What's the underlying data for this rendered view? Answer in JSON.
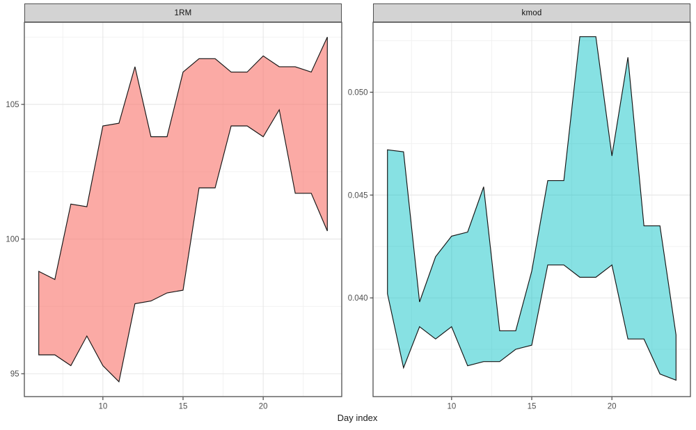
{
  "figure": {
    "xlab": "Day index",
    "background": "#FFFFFF",
    "panel_border_color": "#4F4F4F",
    "strip_fill": "#D3D3D3",
    "strip_border": "#4F4F4F",
    "grid_major_color": "#E6E6E6",
    "grid_minor_color": "#F1F1F1",
    "tick_mark_color": "#333333",
    "tick_label_color": "#4D4D4D",
    "axis_title_color": "#1A1A1A"
  },
  "chart_data": [
    {
      "type": "area",
      "title": "1RM",
      "xlabel": "Day index",
      "ylabel": "",
      "x": [
        6,
        7,
        8,
        9,
        10,
        11,
        12,
        13,
        14,
        15,
        16,
        17,
        18,
        19,
        20,
        21,
        22,
        23,
        24
      ],
      "series": [
        {
          "name": "upper",
          "values": [
            98.8,
            98.5,
            101.3,
            101.2,
            104.2,
            104.3,
            106.4,
            103.8,
            103.8,
            106.2,
            106.7,
            106.7,
            106.2,
            106.2,
            106.8,
            106.4,
            106.4,
            106.2,
            107.5
          ]
        },
        {
          "name": "lower",
          "values": [
            95.7,
            95.7,
            95.3,
            96.4,
            95.3,
            94.7,
            97.6,
            97.7,
            98.0,
            98.1,
            101.9,
            101.9,
            104.2,
            104.2,
            103.8,
            104.8,
            101.7,
            101.7,
            100.3
          ]
        }
      ],
      "xlim": [
        5.1,
        24.9
      ],
      "ylim": [
        94.15,
        108.05
      ],
      "xticks": [
        10,
        15,
        20
      ],
      "xtick_labels": [
        "10",
        "15",
        "20"
      ],
      "yticks": [
        95,
        100,
        105
      ],
      "ytick_labels": [
        "95",
        "100",
        "105"
      ],
      "x_minor": [
        7.5,
        12.5,
        17.5,
        22.5
      ],
      "y_minor": [
        97.5,
        102.5,
        107.5
      ],
      "grid": true,
      "legend": "none",
      "fill": "#F8766D",
      "fill_opacity": 0.62,
      "stroke": "#141414"
    },
    {
      "type": "area",
      "title": "kmod",
      "xlabel": "Day index",
      "ylabel": "",
      "x": [
        6,
        7,
        8,
        9,
        10,
        11,
        12,
        13,
        14,
        15,
        16,
        17,
        18,
        19,
        20,
        21,
        22,
        23,
        24
      ],
      "series": [
        {
          "name": "upper",
          "values": [
            0.0472,
            0.0471,
            0.0398,
            0.042,
            0.043,
            0.0432,
            0.0454,
            0.0384,
            0.0384,
            0.0413,
            0.0457,
            0.0457,
            0.0527,
            0.0527,
            0.0469,
            0.0517,
            0.0435,
            0.0435,
            0.0382
          ]
        },
        {
          "name": "lower",
          "values": [
            0.0402,
            0.0366,
            0.0386,
            0.038,
            0.0386,
            0.0367,
            0.0369,
            0.0369,
            0.0375,
            0.0377,
            0.0416,
            0.0416,
            0.041,
            0.041,
            0.0416,
            0.038,
            0.038,
            0.0363,
            0.036
          ]
        }
      ],
      "xlim": [
        5.1,
        24.9
      ],
      "ylim": [
        0.0352,
        0.0534
      ],
      "xticks": [
        10,
        15,
        20
      ],
      "xtick_labels": [
        "10",
        "15",
        "20"
      ],
      "yticks": [
        0.04,
        0.045,
        0.05
      ],
      "ytick_labels": [
        "0.040",
        "0.045",
        "0.050"
      ],
      "x_minor": [
        7.5,
        12.5,
        17.5,
        22.5
      ],
      "y_minor": [
        0.0375,
        0.0425,
        0.0475,
        0.0525
      ],
      "grid": true,
      "legend": "none",
      "fill": "#00BFC4",
      "fill_opacity": 0.47,
      "stroke": "#141414"
    }
  ]
}
